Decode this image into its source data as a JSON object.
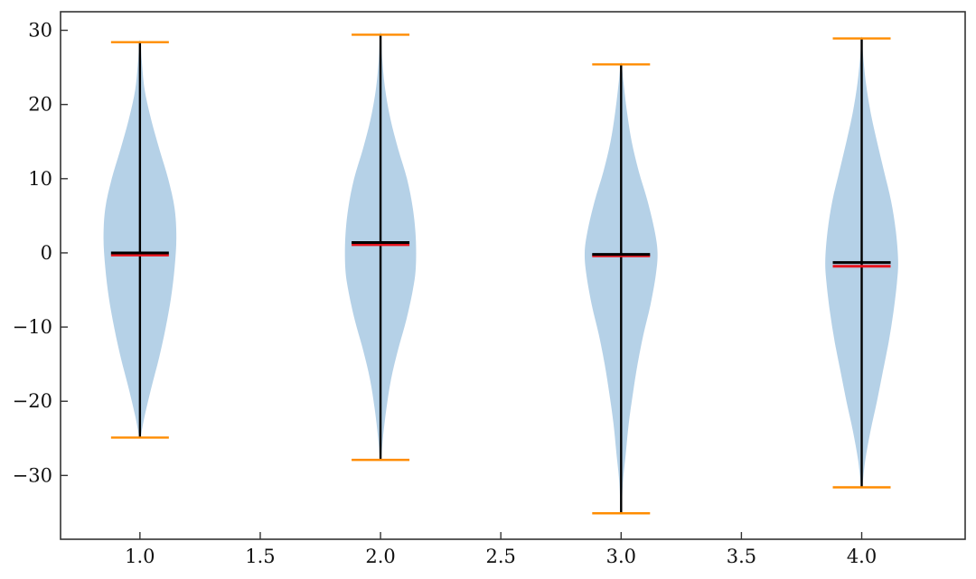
{
  "chart_data": {
    "type": "violin",
    "title": "",
    "xlabel": "",
    "ylabel": "",
    "xlim": [
      0.67,
      4.43
    ],
    "ylim": [
      -38.6,
      32.5
    ],
    "xticks": [
      1.0,
      1.5,
      2.0,
      2.5,
      3.0,
      3.5,
      4.0
    ],
    "xtick_labels": [
      "1.0",
      "1.5",
      "2.0",
      "2.5",
      "3.0",
      "3.5",
      "4.0"
    ],
    "yticks": [
      30,
      20,
      10,
      0,
      -10,
      -20,
      -30
    ],
    "ytick_labels": [
      "30",
      "20",
      "10",
      "0",
      "−10",
      "−20",
      "−30"
    ],
    "grid": false,
    "colors": {
      "body": "#b5d1e7",
      "whisker": "#000000",
      "extrema": "#ff8c00",
      "mean": "#000000",
      "median": "#e8141e"
    },
    "violins": [
      {
        "position": 1.0,
        "min": -24.9,
        "max": 28.4,
        "mean": 0.0,
        "median": -0.3,
        "profile": [
          [
            -24.9,
            0.01
          ],
          [
            -22,
            0.08
          ],
          [
            -18,
            0.2
          ],
          [
            -14,
            0.33
          ],
          [
            -10,
            0.44
          ],
          [
            -6,
            0.53
          ],
          [
            -2,
            0.59
          ],
          [
            2,
            0.62
          ],
          [
            6,
            0.59
          ],
          [
            10,
            0.48
          ],
          [
            14,
            0.33
          ],
          [
            18,
            0.19
          ],
          [
            22,
            0.08
          ],
          [
            26,
            0.03
          ],
          [
            28.4,
            0.01
          ]
        ]
      },
      {
        "position": 2.0,
        "min": -27.9,
        "max": 29.4,
        "mean": 1.4,
        "median": 1.1,
        "profile": [
          [
            -27.9,
            0.01
          ],
          [
            -25,
            0.04
          ],
          [
            -21,
            0.1
          ],
          [
            -17,
            0.18
          ],
          [
            -13,
            0.3
          ],
          [
            -9,
            0.44
          ],
          [
            -5,
            0.55
          ],
          [
            -2,
            0.6
          ],
          [
            2,
            0.6
          ],
          [
            6,
            0.55
          ],
          [
            10,
            0.45
          ],
          [
            14,
            0.3
          ],
          [
            18,
            0.17
          ],
          [
            22,
            0.08
          ],
          [
            26,
            0.03
          ],
          [
            29.4,
            0.01
          ]
        ]
      },
      {
        "position": 3.0,
        "min": -35.1,
        "max": 25.4,
        "mean": -0.2,
        "median": -0.4,
        "profile": [
          [
            -35.1,
            0.01
          ],
          [
            -31,
            0.03
          ],
          [
            -27,
            0.08
          ],
          [
            -23,
            0.13
          ],
          [
            -19,
            0.2
          ],
          [
            -15,
            0.28
          ],
          [
            -11,
            0.38
          ],
          [
            -7,
            0.5
          ],
          [
            -3,
            0.59
          ],
          [
            0,
            0.62
          ],
          [
            3,
            0.57
          ],
          [
            7,
            0.45
          ],
          [
            11,
            0.3
          ],
          [
            15,
            0.18
          ],
          [
            19,
            0.1
          ],
          [
            23,
            0.04
          ],
          [
            25.4,
            0.01
          ]
        ]
      },
      {
        "position": 4.0,
        "min": -31.6,
        "max": 28.9,
        "mean": -1.3,
        "median": -1.8,
        "profile": [
          [
            -31.6,
            0.01
          ],
          [
            -28,
            0.06
          ],
          [
            -24,
            0.15
          ],
          [
            -20,
            0.26
          ],
          [
            -16,
            0.36
          ],
          [
            -12,
            0.46
          ],
          [
            -8,
            0.54
          ],
          [
            -4,
            0.6
          ],
          [
            -1,
            0.62
          ],
          [
            3,
            0.58
          ],
          [
            7,
            0.5
          ],
          [
            11,
            0.38
          ],
          [
            15,
            0.26
          ],
          [
            19,
            0.15
          ],
          [
            23,
            0.07
          ],
          [
            27,
            0.02
          ],
          [
            28.9,
            0.01
          ]
        ]
      }
    ]
  }
}
